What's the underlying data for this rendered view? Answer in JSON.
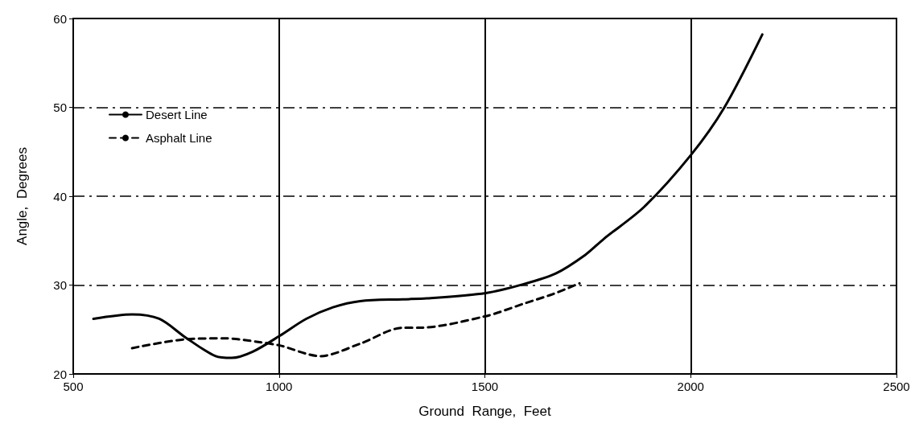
{
  "chart_data": {
    "type": "line",
    "xlabel": "Ground  Range,  Feet",
    "ylabel": "Angle,  Degrees",
    "xlim": [
      500,
      2500
    ],
    "xticks": [
      500,
      1000,
      1500,
      2000,
      2500
    ],
    "ylim": [
      20,
      60
    ],
    "yticks": [
      20,
      30,
      40,
      50,
      60
    ],
    "grid": true,
    "legend": "top left",
    "marker": "none",
    "series": [
      {
        "name": "Desert Line",
        "color": "#000000",
        "line_style": "solid",
        "x": [
          549,
          643,
          709,
          773,
          846,
          885,
          936,
          1002,
          1066,
          1131,
          1197,
          1301,
          1359,
          1502,
          1594,
          1672,
          1744,
          1789,
          1887,
          2000,
          2082,
          2174
        ],
        "values": [
          26.2,
          26.7,
          26.2,
          24.1,
          22.0,
          21.8,
          22.5,
          24.3,
          26.2,
          27.5,
          28.2,
          28.4,
          28.5,
          29.1,
          30.1,
          31.3,
          33.4,
          35.2,
          38.8,
          44.6,
          50.0,
          58.2
        ]
      },
      {
        "name": "Asphalt Line",
        "color": "#000000",
        "line_style": "dashed",
        "x": [
          643,
          773,
          871,
          949,
          1002,
          1100,
          1197,
          1301,
          1340,
          1502,
          1594,
          1666,
          1730
        ],
        "values": [
          22.9,
          23.9,
          24.0,
          23.6,
          23.2,
          22.0,
          23.4,
          25.2,
          25.2,
          26.5,
          27.9,
          29.0,
          30.2
        ]
      }
    ]
  }
}
